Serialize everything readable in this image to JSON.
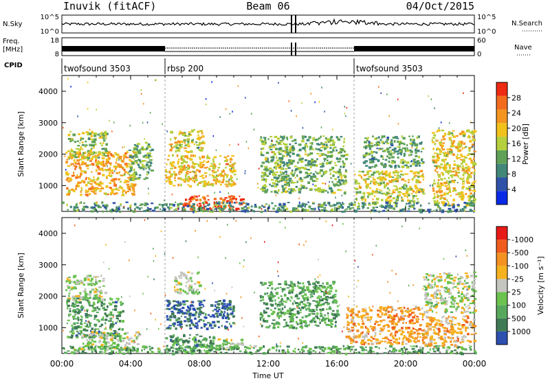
{
  "header": {
    "station": "Inuvik (fitACF)",
    "beam": "Beam 06",
    "date": "04/Oct/2015"
  },
  "strips": {
    "nsky": {
      "label": "N.Sky",
      "left_top": "10^5",
      "left_bottom": "10^0"
    },
    "nsearch": {
      "label": "N.Search",
      "right_top": "10^5",
      "right_bottom": "10^0"
    },
    "freq": {
      "label": "Freq.",
      "unit": "[MHz]",
      "left_top": "18",
      "left_bottom": "8"
    },
    "nave": {
      "label": "Nave",
      "right_top": "60",
      "right_bottom": "0"
    },
    "cpid": {
      "label": "CPID",
      "segments": [
        {
          "name": "twofsound 3503",
          "start_hour": 0,
          "end_hour": 6
        },
        {
          "name": "rbsp 200",
          "start_hour": 6,
          "end_hour": 17
        },
        {
          "name": "twofsound 3503",
          "start_hour": 17,
          "end_hour": 24
        }
      ]
    }
  },
  "chart_data": [
    {
      "type": "heatmap",
      "title": "",
      "xlabel": "",
      "ylabel": "Slant Range [km]",
      "xlim": [
        0,
        24
      ],
      "ylim": [
        180,
        4500
      ],
      "yticks": [
        "1000",
        "2000",
        "3000",
        "4000"
      ],
      "colorbar": {
        "label": "Power [dB]",
        "ticks": [
          "4",
          "8",
          "12",
          "16",
          "20",
          "24",
          "28"
        ],
        "colors": [
          "#0a2ae6",
          "#2f52a9",
          "#42867a",
          "#5fa257",
          "#b6cf3c",
          "#f2c21c",
          "#f3951f",
          "#f36c1e",
          "#ee2a12"
        ]
      },
      "regions": [
        {
          "x": [
            0.2,
            4.2
          ],
          "y": [
            700,
            2100
          ],
          "level": 0.7
        },
        {
          "x": [
            0.3,
            2.6
          ],
          "y": [
            1900,
            2750
          ],
          "level": 0.45
        },
        {
          "x": [
            3.8,
            5.2
          ],
          "y": [
            1200,
            2400
          ],
          "level": 0.4
        },
        {
          "x": [
            6.2,
            8.2
          ],
          "y": [
            2100,
            2800
          ],
          "level": 0.55
        },
        {
          "x": [
            6.0,
            10.0
          ],
          "y": [
            1000,
            2000
          ],
          "level": 0.65
        },
        {
          "x": [
            7.0,
            10.6
          ],
          "y": [
            250,
            700
          ],
          "level": 0.95
        },
        {
          "x": [
            11.5,
            16.5
          ],
          "y": [
            800,
            2600
          ],
          "level": 0.4
        },
        {
          "x": [
            17.0,
            21.0
          ],
          "y": [
            500,
            1500
          ],
          "level": 0.55
        },
        {
          "x": [
            17.5,
            21.0
          ],
          "y": [
            1600,
            2600
          ],
          "level": 0.35
        },
        {
          "x": [
            21.5,
            24.0
          ],
          "y": [
            400,
            2800
          ],
          "level": 0.6
        },
        {
          "x": [
            0.0,
            24.0
          ],
          "y": [
            200,
            500
          ],
          "level": 0.3
        }
      ]
    },
    {
      "type": "heatmap",
      "title": "",
      "xlabel": "Time UT",
      "ylabel": "Slant Range [km]",
      "xlim": [
        0,
        24
      ],
      "ylim": [
        180,
        4500
      ],
      "xticks": [
        "00:00",
        "04:00",
        "08:00",
        "12:00",
        "16:00",
        "20:00",
        "00:00"
      ],
      "yticks": [
        "1000",
        "2000",
        "3000",
        "4000"
      ],
      "colorbar": {
        "label": "Velocity [m s⁻¹]",
        "ticks": [
          "1000",
          "500",
          "100",
          "25",
          "-25",
          "-100",
          "-500",
          "-1000"
        ],
        "colors": [
          "#2c4fb0",
          "#3f7a55",
          "#57a85d",
          "#6cc24e",
          "#c5c5c0",
          "#f5b21e",
          "#f39222",
          "#f05c1c",
          "#e81a17"
        ]
      },
      "regions": [
        {
          "x": [
            0.2,
            3.5
          ],
          "y": [
            700,
            2000
          ],
          "level": 0.22
        },
        {
          "x": [
            0.2,
            2.5
          ],
          "y": [
            1900,
            2700
          ],
          "level": 0.45
        },
        {
          "x": [
            1.0,
            4.5
          ],
          "y": [
            300,
            900
          ],
          "level": 0.45
        },
        {
          "x": [
            6.0,
            10.0
          ],
          "y": [
            1000,
            1900
          ],
          "level": 0.05
        },
        {
          "x": [
            6.5,
            8.0
          ],
          "y": [
            2100,
            2800
          ],
          "level": 0.45
        },
        {
          "x": [
            6.0,
            9.0
          ],
          "y": [
            300,
            800
          ],
          "level": 0.22
        },
        {
          "x": [
            9.0,
            10.5
          ],
          "y": [
            300,
            700
          ],
          "level": 0.45
        },
        {
          "x": [
            11.5,
            16.0
          ],
          "y": [
            1000,
            2500
          ],
          "level": 0.25
        },
        {
          "x": [
            16.5,
            21.0
          ],
          "y": [
            500,
            1700
          ],
          "level": 0.7
        },
        {
          "x": [
            21.0,
            24.0
          ],
          "y": [
            1500,
            2800
          ],
          "level": 0.45
        },
        {
          "x": [
            21.0,
            24.0
          ],
          "y": [
            400,
            1400
          ],
          "level": 0.65
        },
        {
          "x": [
            0.0,
            24.0
          ],
          "y": [
            200,
            450
          ],
          "level": 0.28
        }
      ]
    }
  ]
}
